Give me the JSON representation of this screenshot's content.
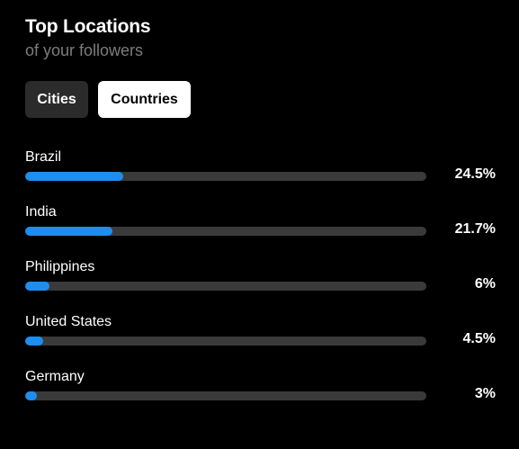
{
  "header": {
    "title": "Top Locations",
    "subtitle": "of your followers"
  },
  "tabs": [
    {
      "label": "Cities",
      "selected": false
    },
    {
      "label": "Countries",
      "selected": true
    }
  ],
  "locations": [
    {
      "name": "Brazil",
      "value_label": "24.5%",
      "percent": 24.5
    },
    {
      "name": "India",
      "value_label": "21.7%",
      "percent": 21.7
    },
    {
      "name": "Philippines",
      "value_label": "6%",
      "percent": 6
    },
    {
      "name": "United States",
      "value_label": "4.5%",
      "percent": 4.5
    },
    {
      "name": "Germany",
      "value_label": "3%",
      "percent": 3
    }
  ],
  "colors": {
    "background": "#000000",
    "bar_fill": "#1d8ef0",
    "bar_track": "#3a3a3a",
    "subtitle": "#7c7c7c",
    "tab_selected_bg": "#ffffff",
    "tab_unselected_bg": "#2b2b2b"
  }
}
